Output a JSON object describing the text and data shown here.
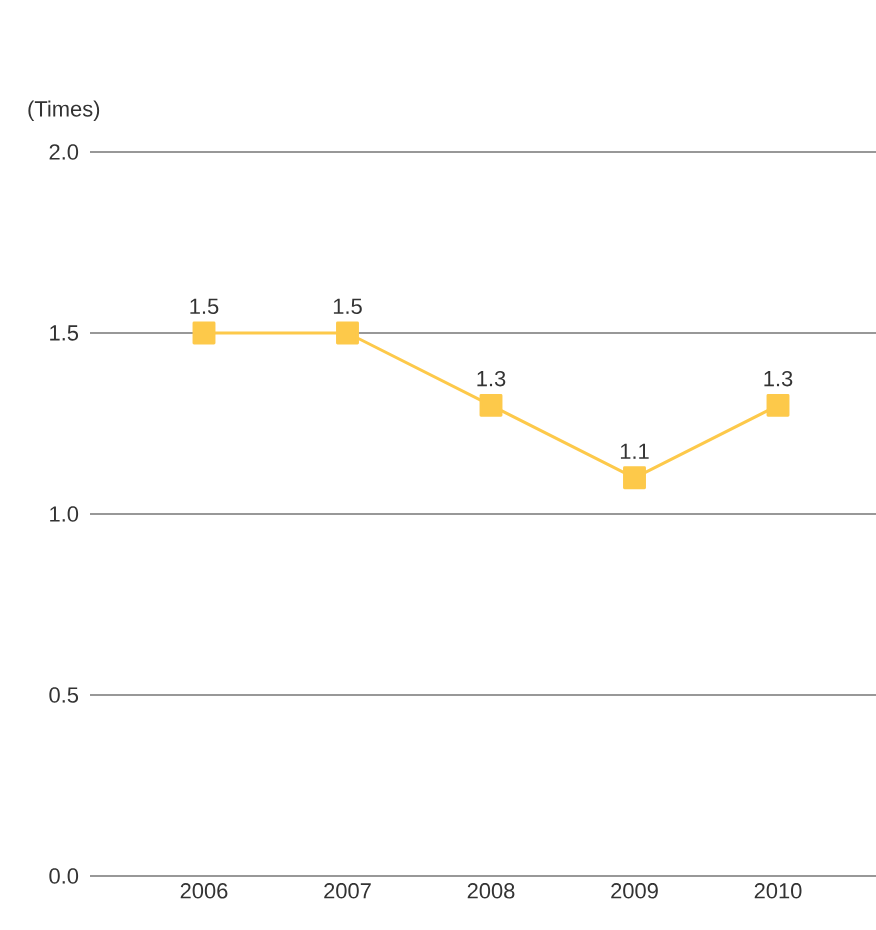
{
  "chart_data": {
    "type": "line",
    "ylabel": "(Times)",
    "categories": [
      "2006",
      "2007",
      "2008",
      "2009",
      "2010"
    ],
    "series": [
      {
        "color": "#fdc94a",
        "values": [
          1.5,
          1.5,
          1.3,
          1.1,
          1.3
        ]
      }
    ],
    "ylim": [
      0,
      2
    ],
    "yticks": [
      {
        "value": 0,
        "label": "0.0"
      },
      {
        "value": 0.5,
        "label": "0.5"
      },
      {
        "value": 1,
        "label": "1.0"
      },
      {
        "value": 1.5,
        "label": "1.5"
      },
      {
        "value": 2,
        "label": "2.0"
      }
    ],
    "grid": "y",
    "marker": "square",
    "line_style": "solid",
    "data_labels": true
  }
}
